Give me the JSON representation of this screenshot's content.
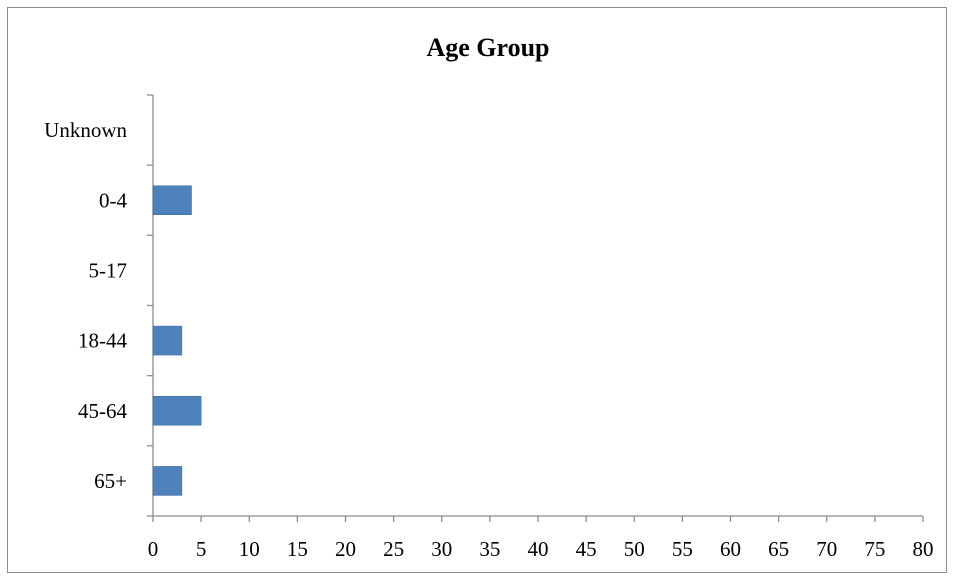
{
  "chart_data": {
    "type": "bar",
    "orientation": "horizontal",
    "title": "Age Group",
    "categories": [
      "Unknown",
      "0-4",
      "5-17",
      "18-44",
      "45-64",
      "65+"
    ],
    "values": [
      0,
      4,
      0,
      3,
      5,
      3
    ],
    "xlim": [
      0,
      80
    ],
    "x_ticks": [
      "0",
      "5",
      "10",
      "15",
      "20",
      "25",
      "30",
      "35",
      "40",
      "45",
      "50",
      "55",
      "60",
      "65",
      "70",
      "75",
      "80"
    ],
    "xlabel": "",
    "ylabel": "",
    "grid": false,
    "legend": "none",
    "bar_color": "#4f81bd"
  }
}
